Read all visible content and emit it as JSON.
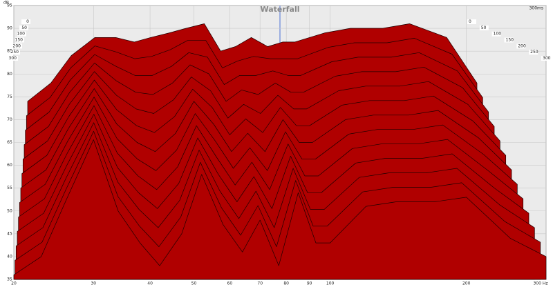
{
  "chart_data": {
    "type": "waterfall",
    "title": "Waterfall",
    "y_label": "dB",
    "time_end_label": "300ms",
    "x": [
      20,
      23,
      26,
      30,
      34,
      38,
      42,
      47,
      52,
      58,
      64,
      70,
      77,
      85,
      93,
      100,
      120,
      140,
      170,
      200,
      250,
      300
    ],
    "xlim": [
      20,
      300
    ],
    "x_log": true,
    "xticks": [
      20,
      30,
      40,
      50,
      60,
      70,
      80,
      90,
      100,
      200,
      {
        "value": 300,
        "label": "300 Hz"
      }
    ],
    "ylim": [
      35,
      95
    ],
    "yticks": [
      35,
      40,
      45,
      50,
      55,
      60,
      65,
      70,
      75,
      80,
      85,
      90,
      95
    ],
    "zlim": [
      0,
      300
    ],
    "zticks": [
      0,
      50,
      100,
      150,
      200,
      250,
      300
    ],
    "grid": true,
    "color": "#b00000",
    "slices": [
      {
        "time": 0,
        "values": [
          66,
          70,
          76,
          80,
          80,
          79,
          80,
          81,
          82,
          83,
          77,
          78,
          80,
          78,
          79,
          79,
          81,
          82,
          82,
          83,
          80,
          70
        ]
      },
      {
        "time": 25,
        "values": [
          63.5,
          67.5,
          74,
          78.8,
          77.5,
          76,
          76.5,
          78,
          80,
          80,
          74,
          75.5,
          76.5,
          76,
          76,
          76,
          78.5,
          79.5,
          79.5,
          80.5,
          77,
          67.5
        ]
      },
      {
        "time": 50,
        "values": [
          61,
          65,
          72,
          77.6,
          75,
          73,
          73,
          75,
          78,
          77,
          71,
          73,
          73,
          74,
          73,
          73,
          76,
          77,
          77,
          78,
          74,
          65
        ]
      },
      {
        "time": 75,
        "values": [
          58.5,
          62.5,
          70,
          76.4,
          72.5,
          70,
          69.5,
          72,
          76,
          74,
          68,
          70.5,
          69.5,
          72,
          70,
          70,
          73.5,
          74.5,
          74.5,
          75.5,
          71,
          62.5
        ]
      },
      {
        "time": 100,
        "values": [
          56,
          60,
          68,
          75.2,
          70,
          67,
          66,
          69,
          74,
          71,
          65,
          68,
          66,
          70,
          67,
          67,
          71,
          72,
          72,
          73,
          68,
          60
        ]
      },
      {
        "time": 125,
        "values": [
          53.5,
          57.5,
          66,
          74,
          67.5,
          64,
          62.5,
          66,
          72,
          68,
          62,
          65.5,
          62.5,
          68,
          64,
          64,
          68.5,
          69.5,
          69.5,
          70.5,
          65,
          57.5
        ]
      },
      {
        "time": 150,
        "values": [
          51,
          55,
          64,
          72.8,
          65,
          61,
          59,
          63,
          70,
          65,
          59,
          63,
          59,
          66,
          61,
          61,
          66,
          67,
          67,
          68,
          62,
          55
        ]
      },
      {
        "time": 175,
        "values": [
          48.5,
          52.5,
          62,
          71.6,
          62.5,
          58,
          55.5,
          60,
          68,
          62,
          56,
          60.5,
          55.5,
          64,
          58,
          58,
          63.5,
          64.5,
          64.5,
          65.5,
          59,
          52.5
        ]
      },
      {
        "time": 200,
        "values": [
          46,
          50,
          60,
          70.4,
          60,
          55,
          52,
          57,
          66,
          59,
          53,
          58,
          52,
          62,
          55,
          55,
          61,
          62,
          62,
          63,
          56,
          50
        ]
      },
      {
        "time": 225,
        "values": [
          43.5,
          47.5,
          58,
          69.2,
          57.5,
          52,
          48.5,
          54,
          64,
          56,
          50,
          55.5,
          48.5,
          60,
          52,
          52,
          58.5,
          59.5,
          59.5,
          60.5,
          53,
          47.5
        ]
      },
      {
        "time": 250,
        "values": [
          41,
          45,
          56,
          68,
          55,
          49,
          45,
          51,
          62,
          53,
          47,
          53,
          45,
          58,
          49,
          49,
          56,
          57,
          57,
          58,
          50,
          45
        ]
      },
      {
        "time": 275,
        "values": [
          38.5,
          42.5,
          54,
          66.8,
          52.5,
          46,
          41.5,
          48,
          60,
          50,
          44,
          50.5,
          41.5,
          56,
          46,
          46,
          53.5,
          54.5,
          54.5,
          55.5,
          47,
          42.5
        ]
      },
      {
        "time": 300,
        "values": [
          36,
          40,
          52,
          65.6,
          50,
          43,
          38,
          45,
          58,
          47,
          41,
          48,
          38,
          54,
          43,
          43,
          51,
          52,
          52,
          53,
          44,
          40
        ]
      }
    ]
  }
}
